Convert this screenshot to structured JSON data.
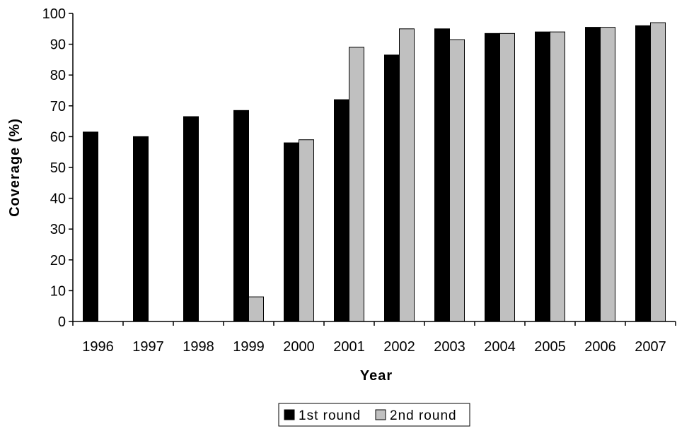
{
  "chart_data": {
    "type": "bar",
    "title": "",
    "xlabel": "Year",
    "ylabel": "Coverage (%)",
    "ylim": [
      0,
      100
    ],
    "yticks": [
      0,
      10,
      20,
      30,
      40,
      50,
      60,
      70,
      80,
      90,
      100
    ],
    "grid": false,
    "legend_position": "bottom",
    "categories": [
      "1996",
      "1997",
      "1998",
      "1999",
      "2000",
      "2001",
      "2002",
      "2003",
      "2004",
      "2005",
      "2006",
      "2007"
    ],
    "series": [
      {
        "name": "1st round",
        "color": "#000000",
        "values": [
          61.5,
          60,
          66.5,
          68.5,
          58,
          72,
          86.5,
          95,
          93.5,
          94,
          95.5,
          96
        ]
      },
      {
        "name": "2nd round",
        "color": "#c0c0c0",
        "values": [
          null,
          null,
          null,
          8,
          59,
          89,
          95,
          91.5,
          93.5,
          94,
          95.5,
          97
        ]
      }
    ]
  }
}
